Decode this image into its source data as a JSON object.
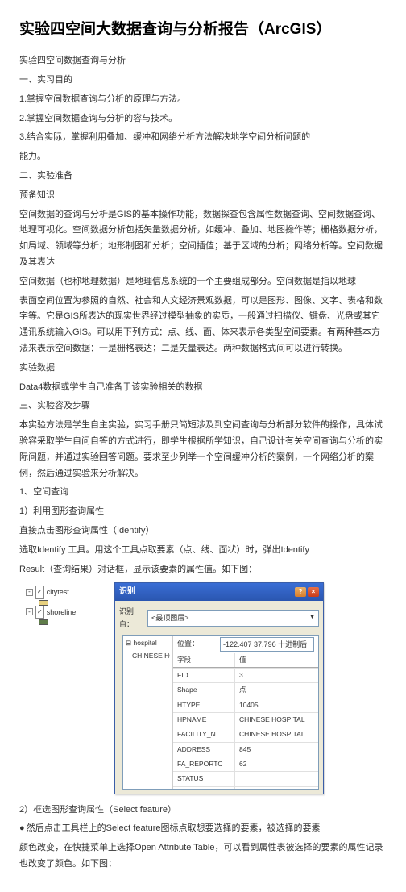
{
  "title": "实验四空间大数据查询与分析报告（ArcGIS）",
  "subtitle": "实验四空间数据查询与分析",
  "sec1_h": "一、实习目的",
  "sec1_1": "1.掌握空间数据查询与分析的原理与方法。",
  "sec1_2": "2.掌握空间数据查询与分析的容与技术。",
  "sec1_3": "3.结合实际，掌握利用叠加、缓冲和网络分析方法解决地学空间分析问题的",
  "sec1_4": "能力。",
  "sec2_h": "二、实验准备",
  "sec2_sub": "预备知识",
  "sec2_p1": "空间数据的查询与分析是GIS的基本操作功能，数据探查包含属性数据查询、空间数据查询、地理可视化。空间数据分析包括矢量数据分析，如缓冲、叠加、地图操作等；栅格数据分析，如局域、领域等分析；地形制图和分析；空间插值；基于区域的分析；网络分析等。空间数据及其表达",
  "sec2_p2": "空间数据（也称地理数据）是地理信息系统的一个主要组成部分。空间数据是指以地球",
  "sec2_p3": "表面空间位置为参照的自然、社会和人文经济景观数据，可以是图形、图像、文字、表格和数字等。它是GIS所表达的现实世界经过模型抽象的实质，一般通过扫描仪、键盘、光盘或其它通讯系统输入GIS。可以用下列方式：点、线、面、体来表示各类型空间要素。有两种基本方法来表示空间数据：一是栅格表达；二是矢量表达。两种数据格式间可以进行转换。",
  "sec2_sub2": "实验数据",
  "sec2_p4": "Data4数据或学生自己准备于该实验相关的数据",
  "sec3_h": "三、实验容及步骤",
  "sec3_p1": "本实验方法是学生自主实验，实习手册只简短涉及到空间查询与分析部分软件的操作，具体试验容采取学生自问自答的方式进行，即学生根据所学知识，自己设计有关空间查询与分析的实际问题，并通过实验回答问题。要求至少列举一个空间缓冲分析的案例，一个网络分析的案例，然后通过实验来分析解决。",
  "q1_h": "1、空间查询",
  "q1_1h": "1）利用图形查询属性",
  "q1_1p1": "直接点击图形查询属性（Identify）",
  "q1_1p2": "选取Identify 工具。用这个工具点取要素（点、线、面状）时，弹出Identify",
  "q1_1p3": "Result（查询结果）对话框，显示该要素的属性值。如下图：",
  "q1_2h": "2）框选图形查询属性（Select feature）",
  "q1_2p1": "然后点击工具栏上的Select feature图标点取想要选择的要素，被选择的要素",
  "q1_2p2": "颜色改变，在快捷菜单上选择Open Attribute Table，可以看到属性表被选择的要素的属性记录也改变了颜色。如下图：",
  "tree": {
    "item1": "citytest",
    "item2": "shoreline",
    "color1": "#e7d07e",
    "color2": "#5f7c4a"
  },
  "dlg": {
    "title": "识别",
    "lbl_ident": "识别自：",
    "ident_val": "<最顶图层>",
    "side_h": "hospital",
    "side_item": "CHINESE HOSPITAL",
    "loc_label": "位置：",
    "loc_val": "-122.407  37.796 十进制后",
    "props": [
      {
        "k": "字段",
        "v": "值"
      },
      {
        "k": "FID",
        "v": "3"
      },
      {
        "k": "Shape",
        "v": "点"
      },
      {
        "k": "HTYPE",
        "v": "10405"
      },
      {
        "k": "HPNAME",
        "v": "CHINESE HOSPITAL"
      },
      {
        "k": "FACILITY_N",
        "v": "CHINESE HOSPITAL"
      },
      {
        "k": "ADDRESS",
        "v": "845"
      },
      {
        "k": "FA_REPORTC",
        "v": "62"
      },
      {
        "k": "STATUS",
        "v": ""
      },
      {
        "k": "",
        "v": ""
      }
    ]
  }
}
